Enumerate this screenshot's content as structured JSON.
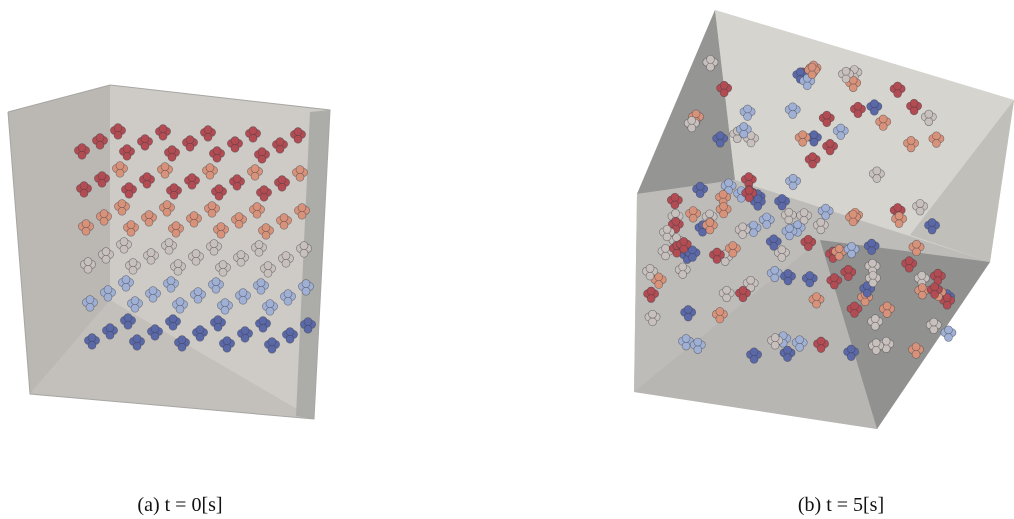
{
  "figure": {
    "panel_a": {
      "caption": "(a) t = 0[s]"
    },
    "panel_b": {
      "caption": "(b) t = 5[s]"
    }
  },
  "colors": {
    "box_faces": [
      "#c9c7c3",
      "#b7b6b3",
      "#9c9c9c",
      "#d6d4cf"
    ],
    "particle_red": "#b24c52",
    "particle_salmon": "#d8927a",
    "particle_light": "#c8c0bc",
    "particle_lightblue": "#9fb0d4",
    "particle_blue": "#5a68a8"
  }
}
